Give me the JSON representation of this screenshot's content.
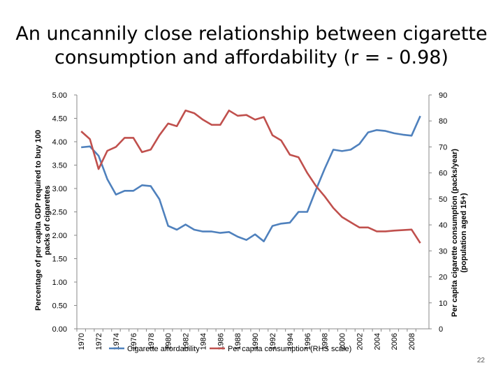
{
  "slide": {
    "title_line1": "An uncannily close relationship between cigarette",
    "title_line2": "consumption and affordability (r = - 0.98)",
    "page_number": "22"
  },
  "chart_data": {
    "type": "line",
    "title": "",
    "ylabel_left": [
      "Percentage of per capita GDP required to buy 100",
      "packs of cigarettes"
    ],
    "ylabel_right": [
      "Per capita cigarette consumption (packs/year)",
      "(population aged 15+)"
    ],
    "ylim_left": [
      0,
      5
    ],
    "ylim_right": [
      0,
      90
    ],
    "yticks_left": [
      "0.00",
      "0.50",
      "1.00",
      "1.50",
      "2.00",
      "2.50",
      "3.00",
      "3.50",
      "4.00",
      "4.50",
      "5.00"
    ],
    "yticks_right": [
      "0",
      "10",
      "20",
      "30",
      "40",
      "50",
      "60",
      "70",
      "80",
      "90"
    ],
    "x": [
      1970,
      1971,
      1972,
      1973,
      1974,
      1975,
      1976,
      1977,
      1978,
      1979,
      1980,
      1981,
      1982,
      1983,
      1984,
      1985,
      1986,
      1987,
      1988,
      1989,
      1990,
      1991,
      1992,
      1993,
      1994,
      1995,
      1996,
      1997,
      1998,
      1999,
      2000,
      2001,
      2002,
      2003,
      2004,
      2005,
      2006,
      2007,
      2008,
      2009
    ],
    "xtick_labels": [
      "1970",
      "1972",
      "1974",
      "1976",
      "1978",
      "1980",
      "1982",
      "1984",
      "1986",
      "1988",
      "1990",
      "1992",
      "1994",
      "1996",
      "1998",
      "2000",
      "2002",
      "2004",
      "2006",
      "2008"
    ],
    "series": [
      {
        "name": "Cigarette affordability",
        "axis": "left",
        "color": "#4f81bd",
        "values": [
          3.88,
          3.9,
          3.7,
          3.2,
          2.87,
          2.95,
          2.95,
          3.07,
          3.05,
          2.77,
          2.2,
          2.12,
          2.23,
          2.12,
          2.08,
          2.08,
          2.05,
          2.07,
          1.97,
          1.9,
          2.02,
          1.87,
          2.2,
          2.25,
          2.27,
          2.5,
          2.5,
          2.97,
          3.42,
          3.83,
          3.8,
          3.83,
          3.95,
          4.2,
          4.25,
          4.23,
          4.18,
          4.15,
          4.13,
          4.55
        ]
      },
      {
        "name": "Per capita consumption (RHS scale)",
        "axis": "right",
        "color": "#c0504d",
        "values": [
          76,
          73,
          61.5,
          68.5,
          70,
          73.5,
          73.5,
          68,
          69,
          74.5,
          79,
          78,
          84,
          83,
          80.5,
          78.5,
          78.5,
          84,
          82,
          82.3,
          80.5,
          81.5,
          74.5,
          72.5,
          67,
          66,
          60,
          55,
          51,
          46.5,
          43,
          41,
          39,
          39,
          37.5,
          37.5,
          37.8,
          38,
          38.2,
          33
        ]
      }
    ],
    "legend_placement": "bottom",
    "grid": false
  }
}
